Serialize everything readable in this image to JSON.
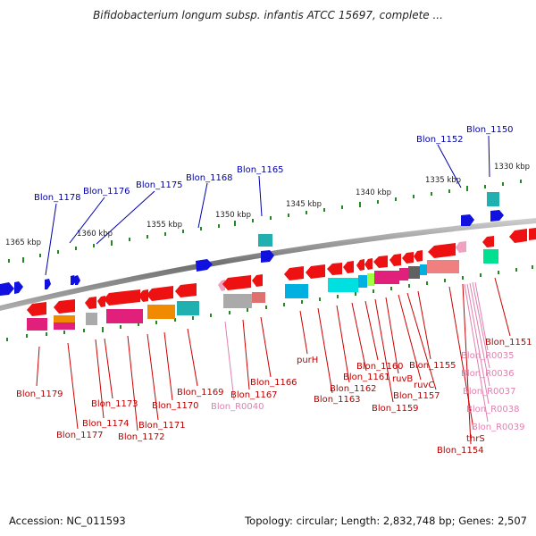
{
  "title": "Bifidobacterium longum subsp. infantis ATCC 15697, complete ...",
  "footer": {
    "accession": "Accession: NC_011593",
    "summary": "Topology: circular; Length: 2,832,748 bp; Genes: 2,507"
  },
  "colors": {
    "backbone": "#8a8a8a",
    "tick": "#228b22",
    "label_blue": "#0000aa",
    "label_red": "#bb0000",
    "label_pink": "#e080b0"
  },
  "scale_labels": [
    "1365 kbp",
    "1360 kbp",
    "1355 kbp",
    "1350 kbp",
    "1345 kbp",
    "1340 kbp",
    "1335 kbp",
    "1330 kbp"
  ],
  "top_labels": [
    "Blon_1178",
    "Blon_1176",
    "Blon_1175",
    "Blon_1168",
    "Blon_1165",
    "Blon_1152",
    "Blon_1150"
  ],
  "bottom_labels": [
    "Blon_1179",
    "Blon_1177",
    "Blon_1174",
    "Blon_1173",
    "Blon_1172",
    "Blon_1171",
    "Blon_1170",
    "Blon_1169",
    "Blon_1167",
    "Blon_R0040",
    "Blon_1166",
    "purH",
    "Blon_1163",
    "Blon_1162",
    "Blon_1161",
    "Blon_1160",
    "Blon_1159",
    "ruvB",
    "ruvC",
    "Blon_1157",
    "Blon_1155",
    "Blon_1154",
    "thrS",
    "Blon_R0039",
    "Blon_R0038",
    "Blon_R0037",
    "Blon_R0036",
    "Blon_R0035",
    "Blon_1151"
  ]
}
